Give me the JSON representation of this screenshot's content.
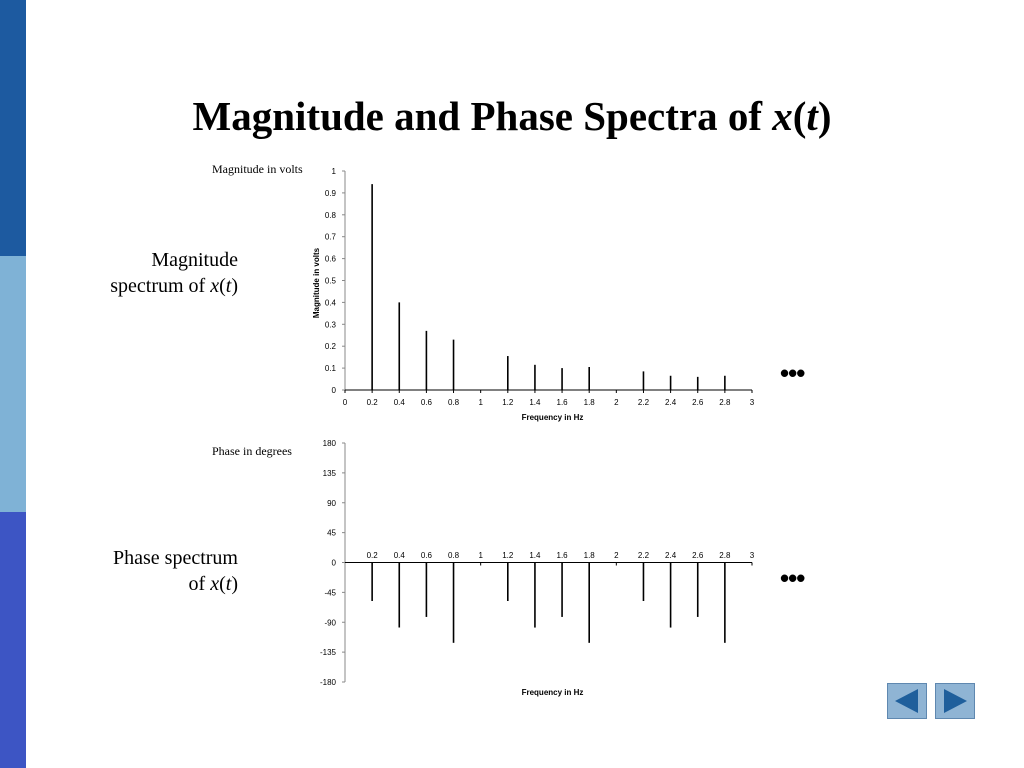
{
  "slide": {
    "title_main": "Magnitude and Phase Spectra of ",
    "title_var": "x",
    "title_open": "(",
    "title_arg": "t",
    "title_close": ")",
    "magnitude_label_line1": "Magnitude",
    "magnitude_label_line2_prefix": "spectrum of ",
    "phase_label_line1": "Phase spectrum",
    "phase_label_line2_prefix": "of ",
    "label_var": "x",
    "label_open": "(",
    "label_arg": "t",
    "label_close": ")",
    "ellipsis": "•••",
    "sidebar_colors": [
      "#1d5aa0",
      "#7fb2d6",
      "#3d55c4"
    ],
    "nav": {
      "back_icon": "triangle-left-icon",
      "forward_icon": "triangle-right-icon",
      "button_color": "#8fb4d4",
      "arrow_color": "#1f5f9c"
    }
  },
  "chart_data": [
    {
      "type": "stem",
      "title_outside": "Magnitude in volts",
      "ylabel": "Magnitude in volts",
      "xlabel": "Frequency in Hz",
      "xlim": [
        0,
        3
      ],
      "ylim": [
        0,
        1
      ],
      "x_ticks": [
        "0",
        "0.2",
        "0.4",
        "0.6",
        "0.8",
        "1",
        "1.2",
        "1.4",
        "1.6",
        "1.8",
        "2",
        "2.2",
        "2.4",
        "2.6",
        "2.8",
        "3"
      ],
      "y_ticks": [
        "0",
        "0.1",
        "0.2",
        "0.3",
        "0.4",
        "0.5",
        "0.6",
        "0.7",
        "0.8",
        "0.9",
        "1"
      ],
      "points": [
        {
          "x": 0.2,
          "y": 0.94
        },
        {
          "x": 0.4,
          "y": 0.4
        },
        {
          "x": 0.6,
          "y": 0.27
        },
        {
          "x": 0.8,
          "y": 0.23
        },
        {
          "x": 1.2,
          "y": 0.155
        },
        {
          "x": 1.4,
          "y": 0.115
        },
        {
          "x": 1.6,
          "y": 0.1
        },
        {
          "x": 1.8,
          "y": 0.105
        },
        {
          "x": 2.2,
          "y": 0.085
        },
        {
          "x": 2.4,
          "y": 0.065
        },
        {
          "x": 2.6,
          "y": 0.06
        },
        {
          "x": 2.8,
          "y": 0.065
        }
      ]
    },
    {
      "type": "stem",
      "title_outside": "Phase in degrees",
      "ylabel": "",
      "xlabel": "Frequency in Hz",
      "xlim": [
        0,
        3
      ],
      "ylim": [
        -180,
        180
      ],
      "x_ticks": [
        "0.2",
        "0.4",
        "0.6",
        "0.8",
        "1",
        "1.2",
        "1.4",
        "1.6",
        "1.8",
        "2",
        "2.2",
        "2.4",
        "2.6",
        "2.8",
        "3"
      ],
      "y_ticks": [
        "-180",
        "-135",
        "-90",
        "-45",
        "0",
        "45",
        "90",
        "135",
        "180"
      ],
      "points": [
        {
          "x": 0.2,
          "y": -58
        },
        {
          "x": 0.4,
          "y": -98
        },
        {
          "x": 0.6,
          "y": -82
        },
        {
          "x": 0.8,
          "y": -121
        },
        {
          "x": 1.2,
          "y": -58
        },
        {
          "x": 1.4,
          "y": -98
        },
        {
          "x": 1.6,
          "y": -82
        },
        {
          "x": 1.8,
          "y": -121
        },
        {
          "x": 2.2,
          "y": -58
        },
        {
          "x": 2.4,
          "y": -98
        },
        {
          "x": 2.6,
          "y": -82
        },
        {
          "x": 2.8,
          "y": -121
        }
      ]
    }
  ]
}
